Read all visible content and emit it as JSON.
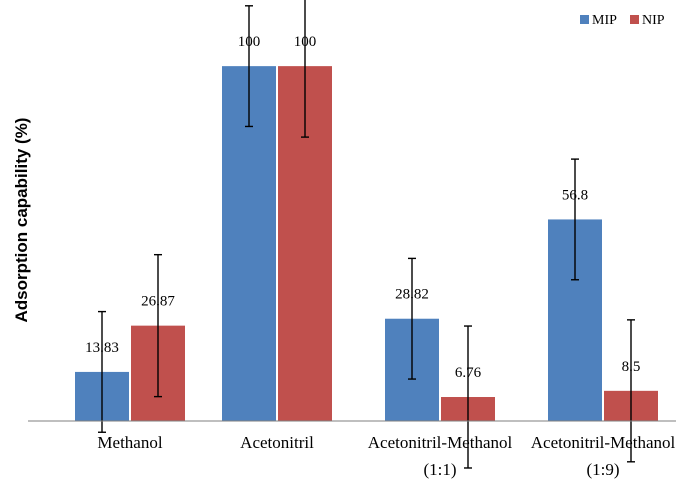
{
  "chart_data": {
    "type": "bar",
    "ylabel": "Adsorption capability (%)",
    "xlabel": "",
    "title": "",
    "ylim": [
      0,
      113
    ],
    "grid": false,
    "legend_position": "top-right",
    "categories": [
      [
        "Methanol"
      ],
      [
        "Acetonitril"
      ],
      [
        "Acetonitril-Methanol",
        "(1:1)"
      ],
      [
        "Acetonitril-Methanol",
        "(1:9)"
      ]
    ],
    "series": [
      {
        "name": "MIP",
        "color": "#4F81BD",
        "values": [
          13.83,
          100,
          28.82,
          56.8
        ],
        "labels": [
          "13.83",
          "100",
          "28.82",
          "56.8"
        ],
        "error": [
          17,
          17,
          17,
          17
        ]
      },
      {
        "name": "NIP",
        "color": "#C0504D",
        "values": [
          26.87,
          100,
          6.76,
          8.5
        ],
        "labels": [
          "26.87",
          "100",
          "6.76",
          "8.5"
        ],
        "error": [
          20,
          20,
          20,
          20
        ]
      }
    ]
  }
}
